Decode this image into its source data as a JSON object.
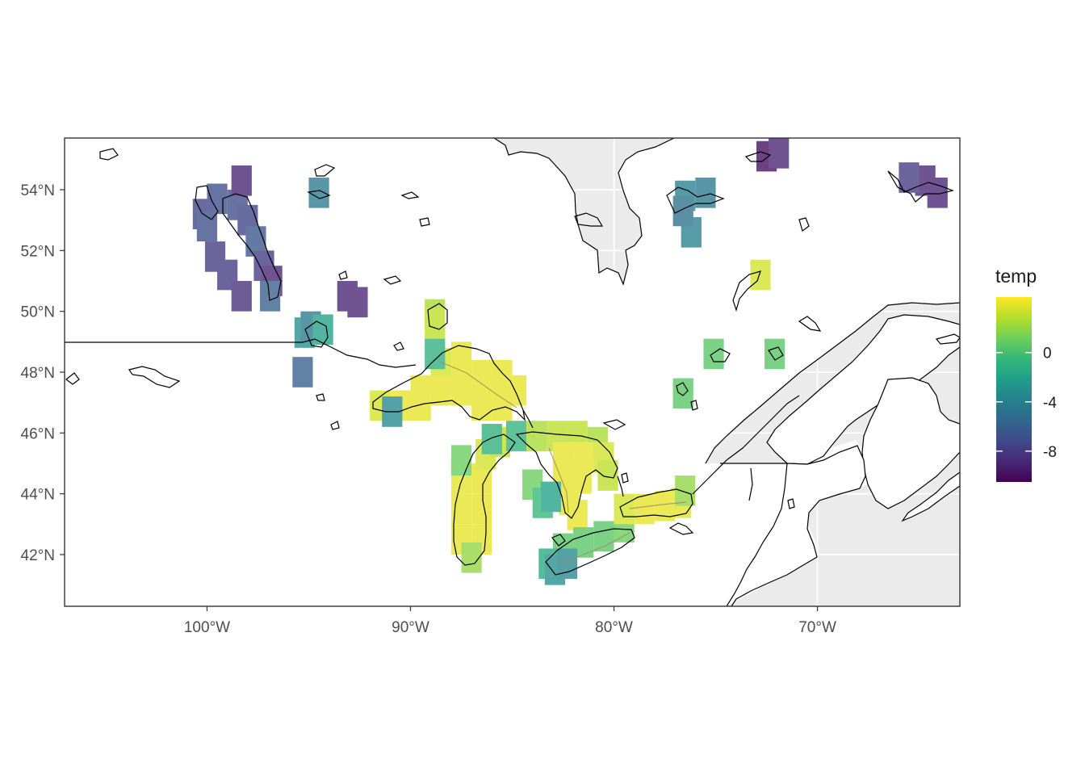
{
  "legend": {
    "title": "temp",
    "min": -10.5,
    "max": 4.5,
    "breaks": [
      {
        "value": 0,
        "label": "0"
      },
      {
        "value": -4,
        "label": "-4"
      },
      {
        "value": -8,
        "label": "-8"
      }
    ],
    "palette": [
      "#440154",
      "#482878",
      "#3e4a89",
      "#31688e",
      "#26828e",
      "#1f9e89",
      "#35b779",
      "#6ece58",
      "#b5de2b",
      "#fde725"
    ]
  },
  "map": {
    "xlim": [
      -107,
      -63
    ],
    "ylim": [
      40.3,
      55.7
    ],
    "x_ticks": [
      {
        "value": -100,
        "label": "100°W"
      },
      {
        "value": -90,
        "label": "90°W"
      },
      {
        "value": -80,
        "label": "80°W"
      },
      {
        "value": -70,
        "label": "70°W"
      }
    ],
    "y_ticks": [
      {
        "value": 54,
        "label": "54°N"
      },
      {
        "value": 52,
        "label": "52°N"
      },
      {
        "value": 50,
        "label": "50°N"
      },
      {
        "value": 48,
        "label": "48°N"
      },
      {
        "value": 46,
        "label": "46°N"
      },
      {
        "value": 44,
        "label": "44°N"
      },
      {
        "value": 42,
        "label": "42°N"
      }
    ],
    "colors": {
      "ocean_grey": "#ebebeb",
      "gridline": "#ffffff",
      "panel_border": "#333333"
    }
  },
  "chart_data": {
    "type": "heatmap",
    "variable": "temp",
    "cells": [
      [
        -88.5,
        47.9,
        4
      ],
      [
        -87.5,
        47.9,
        4
      ],
      [
        -86.5,
        47.9,
        4
      ],
      [
        -85.5,
        47.9,
        4
      ],
      [
        -88.5,
        48.3,
        3.5
      ],
      [
        -87.5,
        48.5,
        4
      ],
      [
        -89.5,
        47.4,
        4
      ],
      [
        -88.5,
        47.4,
        4
      ],
      [
        -87.5,
        47.4,
        4
      ],
      [
        -86.5,
        47.4,
        4
      ],
      [
        -85.5,
        47.4,
        4
      ],
      [
        -84.8,
        47.4,
        4
      ],
      [
        -91.5,
        46.9,
        3.5
      ],
      [
        -90.5,
        46.9,
        4
      ],
      [
        -89.5,
        46.9,
        4
      ],
      [
        -86.5,
        46.9,
        4
      ],
      [
        -85.5,
        46.9,
        4
      ],
      [
        -90.9,
        46.7,
        -3.5
      ],
      [
        -88.8,
        48.6,
        -1
      ],
      [
        -88.8,
        49.9,
        2.5
      ],
      [
        -88.8,
        49.6,
        3
      ],
      [
        -87.5,
        44.5,
        4
      ],
      [
        -86.5,
        44.5,
        4
      ],
      [
        -87.5,
        43.5,
        4
      ],
      [
        -86.5,
        43.5,
        4
      ],
      [
        -87.5,
        42.5,
        4
      ],
      [
        -86.5,
        42.5,
        4
      ],
      [
        -87,
        41.9,
        2
      ],
      [
        -86.3,
        45.3,
        3.5
      ],
      [
        -85.6,
        45.7,
        3
      ],
      [
        -87.5,
        45.1,
        1
      ],
      [
        -86,
        45.8,
        -1
      ],
      [
        -84.8,
        45.9,
        -0.8
      ],
      [
        -83.8,
        45.9,
        2.5
      ],
      [
        -82.8,
        45.9,
        3
      ],
      [
        -81.8,
        45.9,
        3
      ],
      [
        -80.8,
        45.7,
        2.5
      ],
      [
        -82.5,
        45.2,
        4
      ],
      [
        -81.5,
        45.2,
        4
      ],
      [
        -80.5,
        45.2,
        3.5
      ],
      [
        -82.5,
        44.5,
        4
      ],
      [
        -81.6,
        44.5,
        4
      ],
      [
        -80.3,
        44.6,
        3
      ],
      [
        -82.2,
        43.8,
        4
      ],
      [
        -81.8,
        43.3,
        4
      ],
      [
        -84,
        44.3,
        1
      ],
      [
        -83.5,
        43.7,
        -0.5
      ],
      [
        -83.1,
        43.9,
        -2
      ],
      [
        -82.5,
        42.2,
        0.5
      ],
      [
        -81.5,
        42.4,
        0.5
      ],
      [
        -80.5,
        42.6,
        0.5
      ],
      [
        -79.5,
        42.9,
        1
      ],
      [
        -83.2,
        41.7,
        -1.5
      ],
      [
        -82.9,
        41.5,
        -3
      ],
      [
        -82.3,
        41.7,
        -3.5
      ],
      [
        -79.5,
        43.5,
        3.5
      ],
      [
        -78.5,
        43.5,
        4
      ],
      [
        -77.5,
        43.6,
        4
      ],
      [
        -76.7,
        43.7,
        4
      ],
      [
        -76.5,
        44.1,
        2
      ],
      [
        -95.2,
        49.3,
        -3
      ],
      [
        -94.9,
        49.5,
        -4.5
      ],
      [
        -94.3,
        49.4,
        -2
      ],
      [
        -95.3,
        48,
        -6
      ],
      [
        -98.5,
        53.5,
        -7
      ],
      [
        -98.0,
        53.0,
        -7.5
      ],
      [
        -97.6,
        52.3,
        -6.5
      ],
      [
        -97.2,
        51.5,
        -8
      ],
      [
        -96.8,
        51.0,
        -9
      ],
      [
        -96.9,
        50.5,
        -6
      ],
      [
        -99.5,
        53.7,
        -7
      ],
      [
        -100.2,
        53.2,
        -7.5
      ],
      [
        -100,
        52.8,
        -7
      ],
      [
        -99.6,
        51.8,
        -8
      ],
      [
        -99,
        51.2,
        -8
      ],
      [
        -98.3,
        50.5,
        -8.5
      ],
      [
        -98.3,
        54.3,
        -9
      ],
      [
        -94.5,
        53.9,
        -4.5
      ],
      [
        -93.1,
        50.5,
        -9
      ],
      [
        -92.6,
        50.3,
        -9
      ],
      [
        -76.5,
        53.8,
        -4
      ],
      [
        -75.5,
        53.9,
        -4.5
      ],
      [
        -76.2,
        52.6,
        -4
      ],
      [
        -76.6,
        53.3,
        -5
      ],
      [
        -72.5,
        55.1,
        -10
      ],
      [
        -71.9,
        55.2,
        -9
      ],
      [
        -64.7,
        54.3,
        -9
      ],
      [
        -64.1,
        53.9,
        -9
      ],
      [
        -65.5,
        54.4,
        -8
      ],
      [
        -72.8,
        51.2,
        3.5
      ],
      [
        -75.1,
        48.6,
        0.5
      ],
      [
        -72.1,
        48.6,
        0.5
      ],
      [
        -76.6,
        47.3,
        0.5
      ]
    ]
  }
}
